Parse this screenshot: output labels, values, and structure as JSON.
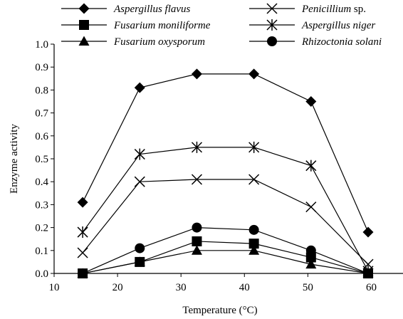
{
  "chart_data": {
    "type": "line",
    "title": "",
    "xlabel": "Temperature (°C)",
    "ylabel": "Enzyme activity",
    "xlim": [
      10,
      65
    ],
    "ylim": [
      0,
      1.0
    ],
    "x_ticks": [
      10,
      20,
      30,
      40,
      50,
      60
    ],
    "y_ticks": [
      0.0,
      0.1,
      0.2,
      0.3,
      0.4,
      0.5,
      0.6,
      0.7,
      0.8,
      0.9,
      1.0
    ],
    "x_tick_labels": [
      "10",
      "20",
      "30",
      "40",
      "50",
      "60"
    ],
    "y_tick_labels": [
      "0.0",
      "0.1",
      "0.2",
      "0.3",
      "0.4",
      "0.5",
      "0.6",
      "0.7",
      "0.8",
      "0.9",
      "1.0"
    ],
    "grid": false,
    "legend_position": "top",
    "x": [
      14.5,
      23.5,
      32.5,
      41.5,
      50.5,
      59.5
    ],
    "series": [
      {
        "name": "Aspergillus flavus",
        "name_style": "italic",
        "marker": "diamond",
        "values": [
          0.31,
          0.81,
          0.87,
          0.87,
          0.75,
          0.18
        ]
      },
      {
        "name": "Fusarium moniliforme",
        "name_style": "italic",
        "marker": "square",
        "values": [
          0.0,
          0.05,
          0.14,
          0.13,
          0.07,
          0.0
        ]
      },
      {
        "name": "Fusarium oxysporum",
        "name_style": "italic",
        "marker": "triangle",
        "values": [
          0.0,
          0.05,
          0.1,
          0.1,
          0.04,
          0.0
        ]
      },
      {
        "name": "Penicillium",
        "name_suffix": " sp.",
        "name_style": "italic",
        "marker": "x",
        "values": [
          0.09,
          0.4,
          0.41,
          0.41,
          0.29,
          0.04
        ]
      },
      {
        "name": "Aspergillus niger",
        "name_style": "italic",
        "marker": "asterisk",
        "values": [
          0.18,
          0.52,
          0.55,
          0.55,
          0.47,
          0.01
        ]
      },
      {
        "name": "Rhizoctonia solani",
        "name_style": "italic",
        "marker": "circle",
        "values": [
          0.0,
          0.11,
          0.2,
          0.19,
          0.1,
          0.0
        ]
      }
    ]
  }
}
